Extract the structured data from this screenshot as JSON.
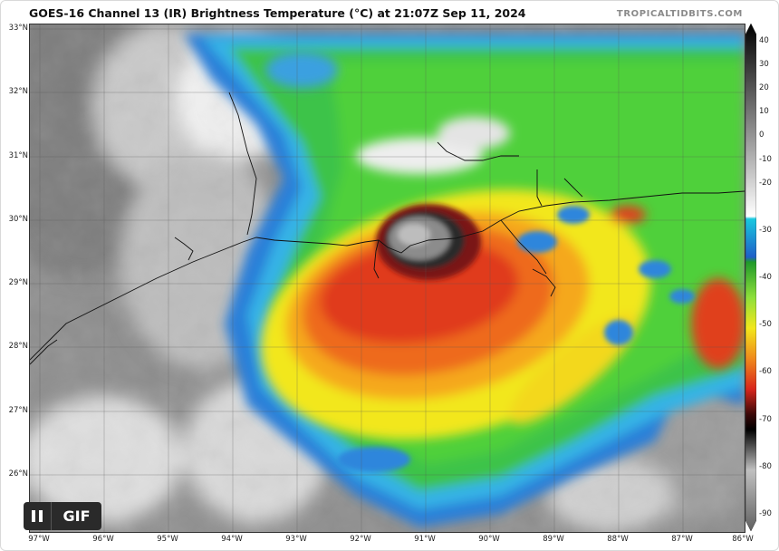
{
  "header": {
    "title": "GOES-16 Channel 13 (IR) Brightness Temperature (°C) at 21:07Z Sep 11, 2024",
    "credit": "TROPICALTIDBITS.COM"
  },
  "map": {
    "lat_labels": [
      "33°N",
      "32°N",
      "31°N",
      "30°N",
      "29°N",
      "28°N",
      "27°N",
      "26°N"
    ],
    "lon_labels": [
      "97°W",
      "96°W",
      "95°W",
      "94°W",
      "93°W",
      "92°W",
      "91°W",
      "90°W",
      "89°W",
      "88°W",
      "87°W",
      "86°W"
    ],
    "lat_range": [
      25.35,
      33.3
    ],
    "lon_range": [
      -97.05,
      -85.95
    ]
  },
  "colorbar": {
    "labels": [
      "40",
      "30",
      "20",
      "10",
      "0",
      "-10",
      "-20",
      "-30",
      "-40",
      "-50",
      "-60",
      "-70",
      "-80",
      "-90"
    ],
    "range": [
      -90,
      40
    ]
  },
  "controls": {
    "gif_label": "GIF",
    "pause_icon": "pause-icon"
  },
  "colors": {
    "land_gray": "#9a9a9a",
    "cloud_white": "#e8e8e8",
    "cold_blue": "#1f6fd0",
    "cyan": "#36b7e6",
    "green": "#3cc83a",
    "yellow": "#f2e71c",
    "orange": "#f08a1c",
    "red": "#d9261c",
    "dark_red": "#6a1010",
    "eye_gray": "#7a7a7a"
  }
}
